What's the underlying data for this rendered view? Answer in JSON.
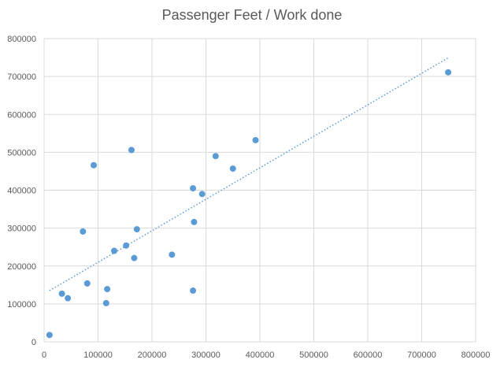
{
  "chart_data": {
    "type": "scatter",
    "title": "Passenger Feet / Work done",
    "xlabel": "",
    "ylabel": "",
    "xlim": [
      0,
      800000
    ],
    "ylim": [
      0,
      800000
    ],
    "xticks": [
      "0",
      "100000",
      "200000",
      "300000",
      "400000",
      "500000",
      "600000",
      "700000",
      "800000"
    ],
    "yticks": [
      "0",
      "100000",
      "200000",
      "300000",
      "400000",
      "500000",
      "600000",
      "700000",
      "800000"
    ],
    "grid": true,
    "legend": "none",
    "marker_color": "#5B9BD5",
    "trendline": {
      "type": "linear",
      "style": "dotted",
      "color": "#5B9BD5",
      "from": [
        10000,
        135000
      ],
      "to": [
        750000,
        750000
      ]
    },
    "points": [
      [
        10000,
        18000
      ],
      [
        33000,
        127000
      ],
      [
        44000,
        115000
      ],
      [
        72000,
        291000
      ],
      [
        80000,
        154000
      ],
      [
        92000,
        466000
      ],
      [
        115000,
        102000
      ],
      [
        117000,
        139000
      ],
      [
        130000,
        240000
      ],
      [
        152000,
        254000
      ],
      [
        162000,
        506000
      ],
      [
        167000,
        221000
      ],
      [
        172000,
        297000
      ],
      [
        237000,
        230000
      ],
      [
        276000,
        135000
      ],
      [
        276000,
        405000
      ],
      [
        278000,
        316000
      ],
      [
        293000,
        390000
      ],
      [
        318000,
        490000
      ],
      [
        350000,
        457000
      ],
      [
        392000,
        532000
      ],
      [
        749000,
        711000
      ]
    ]
  }
}
